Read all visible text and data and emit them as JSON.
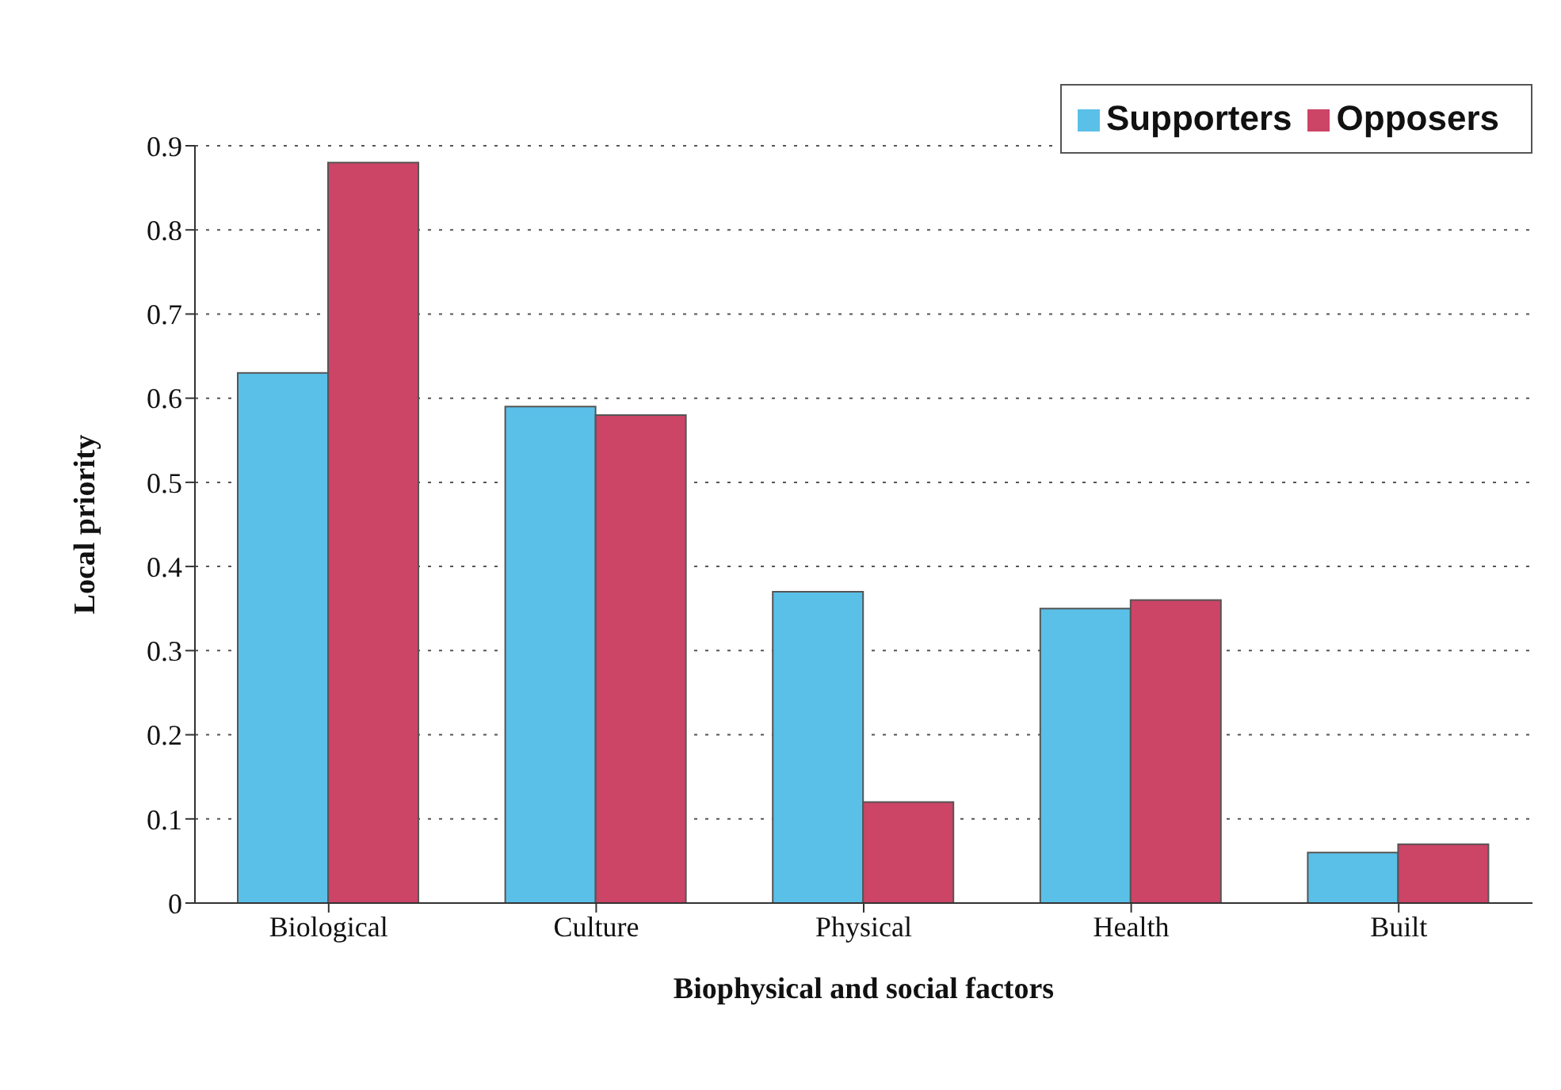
{
  "chart_data": {
    "type": "bar",
    "xlabel": "Biophysical and social factors",
    "ylabel": "Local priority",
    "categories": [
      "Biological",
      "Culture",
      "Physical",
      "Health",
      "Built"
    ],
    "series": [
      {
        "name": "Supporters",
        "color": "#5bc0e8",
        "values": [
          0.63,
          0.59,
          0.37,
          0.35,
          0.06
        ]
      },
      {
        "name": "Opposers",
        "color": "#cc4466",
        "values": [
          0.88,
          0.58,
          0.12,
          0.36,
          0.07
        ]
      }
    ],
    "ylim": [
      0,
      0.9
    ],
    "yticks": [
      0,
      0.1,
      0.2,
      0.3,
      0.4,
      0.5,
      0.6,
      0.7,
      0.8,
      0.9
    ],
    "grid": "y",
    "legend": "top right"
  }
}
